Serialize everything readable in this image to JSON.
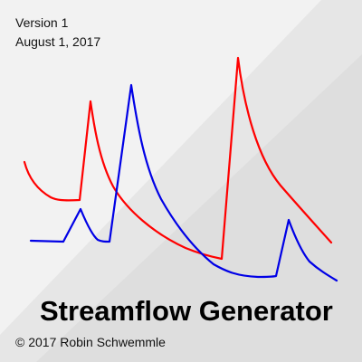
{
  "cover": {
    "version": "Version 1",
    "date": "August 1, 2017",
    "title": "Streamflow Generator",
    "copyright": "© 2017 Robin Schwemmle"
  },
  "colors": {
    "background": "#f2f2f2",
    "shade_light": "#e6e6e6",
    "shade_dark": "#dcdcdc",
    "series_a": "#ff0000",
    "series_b": "#0000e6"
  }
}
